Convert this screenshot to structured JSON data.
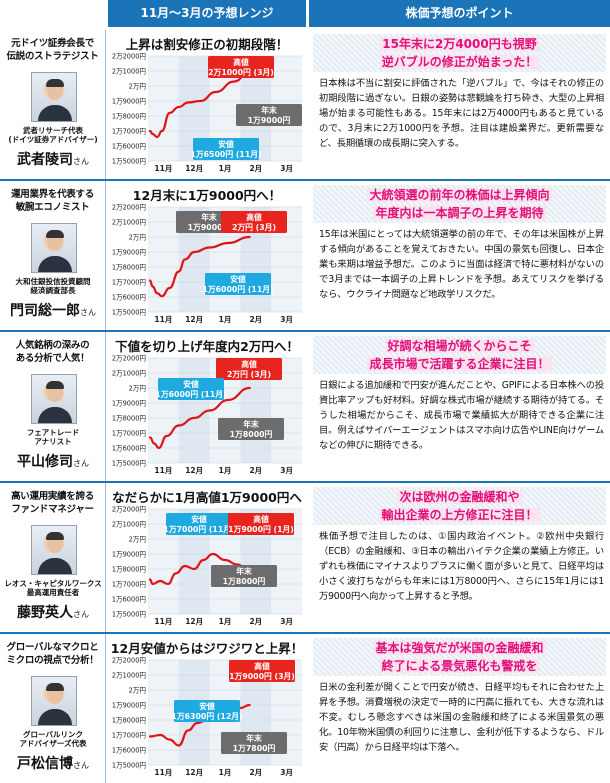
{
  "headers": {
    "chart_col": "11月〜3月の予想レンジ",
    "text_col": "株価予想のポイント"
  },
  "chart_common": {
    "y_ticks": [
      "2万2000円",
      "2万1000円",
      "2万円",
      "1万9000円",
      "1万8000円",
      "1万7000円",
      "1万6000円",
      "1万5000円"
    ],
    "x_ticks": [
      "11月",
      "12月",
      "1月",
      "2月",
      "3月"
    ]
  },
  "rows": [
    {
      "tagline": [
        "元ドイツ証券会長で",
        "伝説のストラテジスト"
      ],
      "org": [
        "武者リサーチ代表",
        "(ドイツ証券アドバイザー)"
      ],
      "name": "武者陵司",
      "suffix": "さん",
      "chart_title": "上昇は割安修正の初期段階！",
      "badges": [
        {
          "type": "high",
          "label": "高値",
          "value": "2万1000円 (3月)"
        },
        {
          "type": "end",
          "label": "年末",
          "value": "1万9000円"
        },
        {
          "type": "low",
          "label": "安値",
          "value": "1万6500円 (11月)"
        }
      ],
      "head": [
        "15年末に2万4000円も視野",
        "逆バブルの修正が始まった！"
      ],
      "body": "日本株は不当に割安に評価された「逆バブル」で、今はそれの修正の初期段階に過ぎない。日銀の姿勢は悲観論を打ち砕き、大型の上昇相場が始まる可能性もある。15年末には2万4000円もあると見ているので、3月末に2万1000円を予想。注目は建設業界だ。更新需要など、長期循環の成長期に突入する。"
    },
    {
      "tagline": [
        "運用業界を代表する",
        "敏腕エコノミスト"
      ],
      "org": [
        "大和住銀投信投資顧問",
        "経済調査部長"
      ],
      "name": "門司総一郎",
      "suffix": "さん",
      "chart_title": "12月末に1万9000円へ！",
      "badges": [
        {
          "type": "end",
          "label": "年末",
          "value": "1万9000円"
        },
        {
          "type": "high",
          "label": "高値",
          "value": "2万円 (3月)"
        },
        {
          "type": "low",
          "label": "安値",
          "value": "1万6000円 (11月)"
        }
      ],
      "head": [
        "大統領選の前年の株価は上昇傾向",
        "年度内は一本調子の上昇を期待"
      ],
      "body": "15年は米国にとっては大統領選挙の前の年で、その年は米国株が上昇する傾向があることを覚えておきたい。中国の景気も回復し、日本企業も来期は増益予想だ。このように当面は経済で特に悪材料がないので3月までは一本調子の上昇トレンドを予想。あえてリスクを挙げるなら、ウクライナ問題など地政学リスクだ。"
    },
    {
      "tagline": [
        "人気銘柄の深みの",
        "ある分析で人気！"
      ],
      "org": [
        "フェアトレード",
        "アナリスト"
      ],
      "name": "平山修司",
      "suffix": "さん",
      "chart_title": "下値を切り上げ年度内2万円へ！",
      "badges": [
        {
          "type": "high",
          "label": "高値",
          "value": "2万円 (3月)"
        },
        {
          "type": "low",
          "label": "安値",
          "value": "1万6000円 (11月)"
        },
        {
          "type": "end",
          "label": "年末",
          "value": "1万8000円"
        }
      ],
      "head": [
        "好調な相場が続くからこそ",
        "成長市場で活躍する企業に注目！"
      ],
      "body": "日銀による追加緩和で円安が進んだことや、GPIFによる日本株への投資比率アップも好材料。好調な株式市場が継続する期待が持てる。そうした相場だからこそ、成長市場で業績拡大が期待できる企業に注目。例えばサイバーエージェントはスマホ向け広告やLINE向けゲームなどの伸びに期待できる。"
    },
    {
      "tagline": [
        "高い運用実績を誇る",
        "ファンドマネジャー"
      ],
      "org": [
        "レオス・キャピタルワークス",
        "最高運用責任者"
      ],
      "name": "藤野英人",
      "suffix": "さん",
      "chart_title": "なだらかに1月高値1万9000円へ",
      "badges": [
        {
          "type": "low",
          "label": "安値",
          "value": "1万7000円 (11月)"
        },
        {
          "type": "high",
          "label": "高値",
          "value": "1万9000円 (1月)"
        },
        {
          "type": "end",
          "label": "年末",
          "value": "1万8000円"
        }
      ],
      "head": [
        "次は欧州の金融緩和や",
        "輸出企業の上方修正に注目！"
      ],
      "body": "株価予想で注目したのは、①国内政治イベント。②欧州中央銀行（ECB）の金融緩和、③日本の輸出ハイテク企業の業績上方修正。いずれも株価にマイナスよりプラスに働く面が多いと見て、日経平均は小さく波打ちながらも年末には1万8000円へ、さらに15年1月には1万9000円へ向かって上昇すると予想。"
    },
    {
      "tagline": [
        "グローバルなマクロと",
        "ミクロの視点で分析！"
      ],
      "org": [
        "グローバルリンク",
        "アドバイザーズ代表"
      ],
      "name": "戸松信博",
      "suffix": "さん",
      "chart_title": "12月安値からはジワジワと上昇！",
      "badges": [
        {
          "type": "high",
          "label": "高値",
          "value": "1万9000円 (3月)"
        },
        {
          "type": "low",
          "label": "安値",
          "value": "1万6300円 (12月)"
        },
        {
          "type": "end",
          "label": "年末",
          "value": "1万7800円"
        }
      ],
      "head": [
        "基本は強気だが米国の金融緩和",
        "終了による景気悪化も警戒を"
      ],
      "body": "日米の金利差が開くことで円安が続き、日経平均もそれに合わせた上昇を予想。消費増税の決定で一時的に円高に振れても、大きな流れは不変。むしろ懸念すべきは米国の金融緩和終了による米国景気の悪化。10年物米国債の利回りに注意し、金利が低下するようなら、ドル安（円高）から日経平均は下落へ。"
    }
  ],
  "colors": {
    "header_bg": "#1b74b8",
    "high": "#e8241f",
    "end": "#6c6c6c",
    "low": "#1ea9e1",
    "accent_pink": "#e0117a",
    "line": "#e01418"
  },
  "chart_data": [
    {
      "type": "line",
      "title": "上昇は割安修正の初期段階！",
      "categories": [
        "11月",
        "12月",
        "1月",
        "2月",
        "3月"
      ],
      "series": [
        {
          "values": [
            [
              0.0,
              17000
            ],
            [
              0.15,
              16800
            ],
            [
              0.3,
              16600
            ],
            [
              0.45,
              17000
            ],
            [
              0.7,
              18200
            ],
            [
              1.0,
              18600
            ],
            [
              1.3,
              18900
            ],
            [
              1.7,
              19000
            ],
            [
              2.2,
              19600
            ],
            [
              2.8,
              20300
            ],
            [
              3.3,
              21000
            ]
          ]
        }
      ],
      "ylim": [
        15000,
        22000
      ]
    },
    {
      "type": "line",
      "title": "12月末に1万9000円へ！",
      "categories": [
        "11月",
        "12月",
        "1月",
        "2月",
        "3月"
      ],
      "series": [
        {
          "values": [
            [
              0.0,
              17100
            ],
            [
              0.15,
              16700
            ],
            [
              0.3,
              16250
            ],
            [
              0.45,
              16050
            ],
            [
              0.7,
              16600
            ],
            [
              1.0,
              17700
            ],
            [
              1.2,
              18500
            ],
            [
              1.5,
              19000
            ],
            [
              2.0,
              19300
            ],
            [
              2.6,
              19600
            ],
            [
              3.3,
              20000
            ]
          ]
        }
      ],
      "ylim": [
        15000,
        22000
      ]
    },
    {
      "type": "line",
      "title": "下値を切り上げ年度内2万円へ！",
      "categories": [
        "11月",
        "12月",
        "1月",
        "2月",
        "3月"
      ],
      "series": [
        {
          "values": [
            [
              0.0,
              16700
            ],
            [
              0.2,
              16300
            ],
            [
              0.35,
              16000
            ],
            [
              0.6,
              16800
            ],
            [
              1.0,
              17500
            ],
            [
              1.5,
              18000
            ],
            [
              2.0,
              18500
            ],
            [
              2.6,
              19200
            ],
            [
              3.3,
              20000
            ]
          ]
        }
      ],
      "ylim": [
        15000,
        22000
      ]
    },
    {
      "type": "line",
      "title": "なだらかに1月高値1万9000円へ",
      "categories": [
        "11月",
        "12月",
        "1月",
        "2月",
        "3月"
      ],
      "series": [
        {
          "values": [
            [
              0.0,
              17300
            ],
            [
              0.15,
              17000
            ],
            [
              0.4,
              17200
            ],
            [
              0.65,
              17000
            ],
            [
              0.9,
              17700
            ],
            [
              1.2,
              18200
            ],
            [
              1.5,
              18000
            ],
            [
              1.8,
              18600
            ],
            [
              2.1,
              19000
            ],
            [
              2.5,
              18600
            ],
            [
              2.9,
              18300
            ],
            [
              3.3,
              17700
            ]
          ]
        }
      ],
      "ylim": [
        15000,
        22000
      ]
    },
    {
      "type": "line",
      "title": "12月安値からはジワジワと上昇！",
      "categories": [
        "11月",
        "12月",
        "1月",
        "2月",
        "3月"
      ],
      "series": [
        {
          "values": [
            [
              0.0,
              16900
            ],
            [
              0.4,
              17000
            ],
            [
              0.7,
              16700
            ],
            [
              1.0,
              16300
            ],
            [
              1.3,
              17300
            ],
            [
              1.6,
              17800
            ],
            [
              2.0,
              18100
            ],
            [
              2.5,
              18500
            ],
            [
              3.0,
              18800
            ],
            [
              3.3,
              19000
            ]
          ]
        }
      ],
      "ylim": [
        15000,
        22000
      ]
    }
  ]
}
